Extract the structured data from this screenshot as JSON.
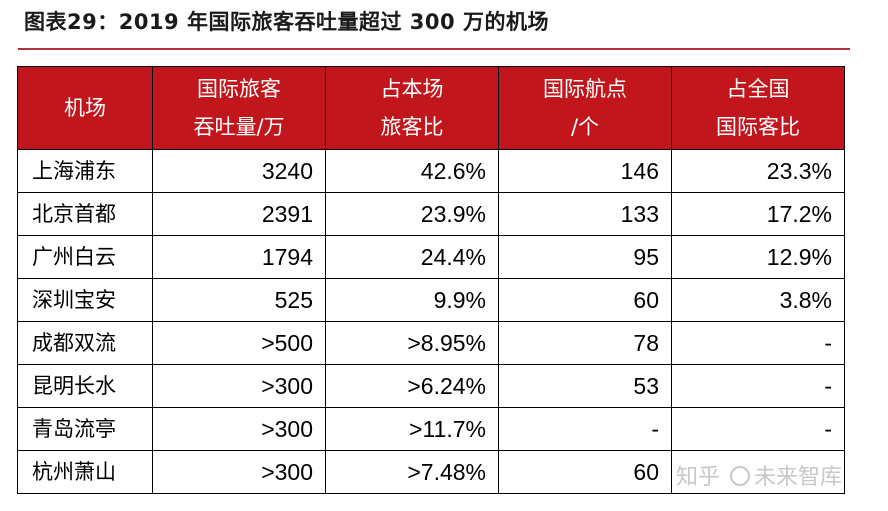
{
  "title": "图表29：2019 年国际旅客吞吐量超过 300 万的机场",
  "table": {
    "headers": [
      [
        "机场"
      ],
      [
        "国际旅客",
        "吞吐量/万"
      ],
      [
        "占本场",
        "旅客比"
      ],
      [
        "国际航点",
        "/个"
      ],
      [
        "占全国",
        "国际客比"
      ]
    ],
    "rows": [
      [
        "上海浦东",
        "3240",
        "42.6%",
        "146",
        "23.3%"
      ],
      [
        "北京首都",
        "2391",
        "23.9%",
        "133",
        "17.2%"
      ],
      [
        "广州白云",
        "1794",
        "24.4%",
        "95",
        "12.9%"
      ],
      [
        "深圳宝安",
        "525",
        "9.9%",
        "60",
        "3.8%"
      ],
      [
        "成都双流",
        ">500",
        ">8.95%",
        "78",
        "-"
      ],
      [
        "昆明长水",
        ">300",
        ">6.24%",
        "53",
        "-"
      ],
      [
        "青岛流亭",
        ">300",
        ">11.7%",
        "-",
        "-"
      ],
      [
        "杭州萧山",
        ">300",
        ">7.48%",
        "60",
        ""
      ]
    ]
  },
  "watermark": {
    "site": "知乎",
    "author": "未来智库"
  }
}
